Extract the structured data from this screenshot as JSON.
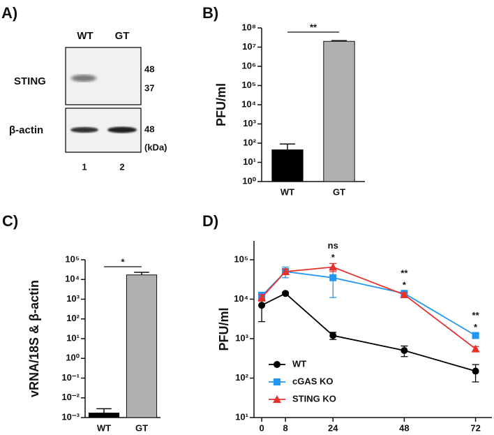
{
  "blot": {
    "panel_label": "A)",
    "lanes": [
      "WT",
      "GT"
    ],
    "lane_numbers": [
      "1",
      "2"
    ],
    "rows": [
      {
        "name": "STING",
        "markers": [
          "48",
          "37"
        ]
      },
      {
        "name": "β-actin",
        "markers": [
          "48"
        ]
      }
    ],
    "unit": "(kDa)"
  },
  "chart_data": [
    {
      "type": "bar",
      "panel_label": "B)",
      "y_label": "PFU/ml",
      "log_y": true,
      "categories": [
        "WT",
        "GT"
      ],
      "values": [
        45,
        20000000
      ],
      "errors": [
        45,
        2000000
      ],
      "colors": [
        "#000000",
        "#b0b0b0"
      ],
      "significance": "**",
      "ylim": [
        1,
        100000000
      ],
      "yticks": [
        {
          "value": 1,
          "label": "10⁰"
        },
        {
          "value": 10,
          "label": "10¹"
        },
        {
          "value": 100,
          "label": "10²"
        },
        {
          "value": 1000,
          "label": "10³"
        },
        {
          "value": 10000,
          "label": "10⁴"
        },
        {
          "value": 100000,
          "label": "10⁵"
        },
        {
          "value": 1000000,
          "label": "10⁶"
        },
        {
          "value": 10000000,
          "label": "10⁷"
        },
        {
          "value": 100000000,
          "label": "10⁸"
        }
      ]
    },
    {
      "type": "bar",
      "panel_label": "C)",
      "y_label": "vRNA/18S & β-actin",
      "log_y": true,
      "categories": [
        "WT",
        "GT"
      ],
      "values": [
        0.0017,
        17000
      ],
      "errors": [
        0.0011,
        6000
      ],
      "colors": [
        "#000000",
        "#b0b0b0"
      ],
      "significance": "*",
      "ylim": [
        0.001,
        100000
      ],
      "yticks": [
        {
          "value": 0.001,
          "label": "10⁻³"
        },
        {
          "value": 0.01,
          "label": "10⁻²"
        },
        {
          "value": 0.1,
          "label": "10⁻¹"
        },
        {
          "value": 1,
          "label": "10⁰"
        },
        {
          "value": 10,
          "label": "10¹"
        },
        {
          "value": 100,
          "label": "10²"
        },
        {
          "value": 1000,
          "label": "10³"
        },
        {
          "value": 10000,
          "label": "10⁴"
        },
        {
          "value": 100000,
          "label": "10⁵"
        }
      ]
    },
    {
      "type": "line",
      "panel_label": "D)",
      "y_label": "PFU/ml",
      "log_y": true,
      "legend": "lower left",
      "x": [
        0,
        8,
        24,
        48,
        72
      ],
      "xlim": [
        -2.6,
        77.5
      ],
      "xticks": [
        0,
        8,
        24,
        48,
        72
      ],
      "ylim": [
        10,
        300000
      ],
      "yticks": [
        {
          "value": 10,
          "label": "10¹"
        },
        {
          "value": 100,
          "label": "10²"
        },
        {
          "value": 1000,
          "label": "10³"
        },
        {
          "value": 10000,
          "label": "10⁴"
        },
        {
          "value": 100000,
          "label": "10⁵"
        }
      ],
      "series": [
        {
          "name": "WT",
          "color": "#000000",
          "marker": "circle",
          "values": [
            7000,
            14000,
            1200,
            500,
            150
          ],
          "errors": [
            4300,
            1000,
            250,
            150,
            70
          ]
        },
        {
          "name": "cGAS KO",
          "color": "#2196f3",
          "marker": "square",
          "values": [
            12000,
            50000,
            35000,
            14000,
            1200
          ],
          "errors": [
            3000,
            15000,
            24000,
            2000,
            150
          ]
        },
        {
          "name": "STING KO",
          "color": "#e8312a",
          "marker": "triangle",
          "values": [
            11000,
            50000,
            65000,
            13000,
            550
          ],
          "errors": [
            2000,
            8000,
            15000,
            1500,
            80
          ]
        }
      ],
      "annotations": [
        {
          "x": 24,
          "marks": [
            {
              "text": "ns",
              "color": "#3b9be0"
            },
            {
              "text": "*",
              "color": "#e8312a"
            }
          ]
        },
        {
          "x": 48,
          "marks": [
            {
              "text": "**",
              "color": "#2196f3"
            },
            {
              "text": "*",
              "color": "#e8312a"
            }
          ]
        },
        {
          "x": 72,
          "marks": [
            {
              "text": "**",
              "color": "#2196f3"
            },
            {
              "text": "*",
              "color": "#e8312a"
            }
          ]
        }
      ]
    }
  ]
}
